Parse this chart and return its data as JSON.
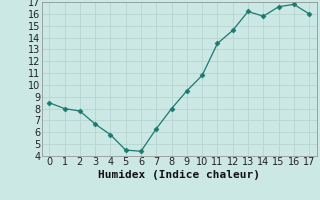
{
  "x": [
    0,
    1,
    2,
    3,
    4,
    5,
    6,
    7,
    8,
    9,
    10,
    11,
    12,
    13,
    14,
    15,
    16,
    17
  ],
  "y": [
    8.5,
    8.0,
    7.8,
    6.7,
    5.8,
    4.5,
    4.4,
    6.3,
    8.0,
    9.5,
    10.8,
    13.5,
    14.6,
    16.2,
    15.8,
    16.6,
    16.8,
    16.0
  ],
  "line_color": "#1a7a6e",
  "marker": "D",
  "marker_size": 2.5,
  "bg_color": "#cce8e5",
  "grid_color": "#b8d4d0",
  "xlabel": "Humidex (Indice chaleur)",
  "xlabel_fontsize": 8,
  "tick_fontsize": 7,
  "ylim": [
    4,
    17
  ],
  "xlim": [
    -0.5,
    17.5
  ],
  "yticks": [
    4,
    5,
    6,
    7,
    8,
    9,
    10,
    11,
    12,
    13,
    14,
    15,
    16,
    17
  ],
  "xticks": [
    0,
    1,
    2,
    3,
    4,
    5,
    6,
    7,
    8,
    9,
    10,
    11,
    12,
    13,
    14,
    15,
    16,
    17
  ]
}
